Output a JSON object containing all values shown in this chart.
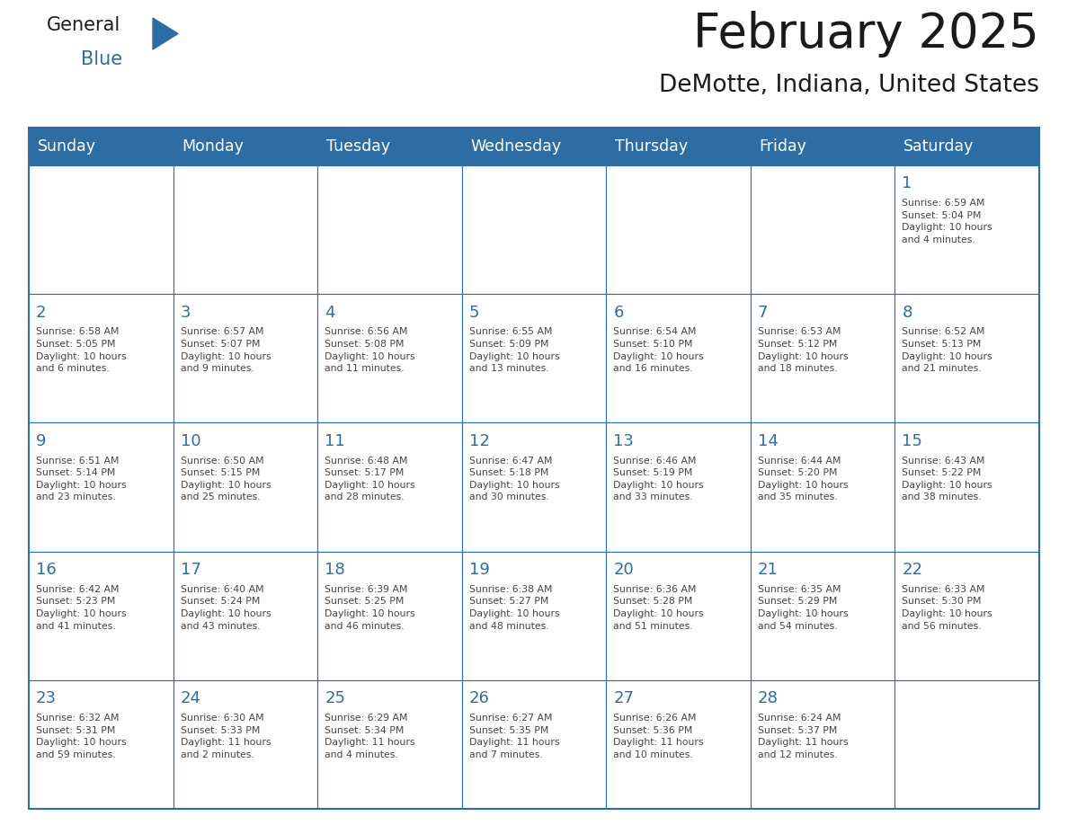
{
  "title": "February 2025",
  "subtitle": "DeMotte, Indiana, United States",
  "header_bg_color": "#2E6DA4",
  "header_text_color": "#FFFFFF",
  "day_names": [
    "Sunday",
    "Monday",
    "Tuesday",
    "Wednesday",
    "Thursday",
    "Friday",
    "Saturday"
  ],
  "cell_bg_color": "#FFFFFF",
  "grid_line_color": "#2E6DA4",
  "date_text_color": "#2E6DA4",
  "info_text_color": "#444444",
  "background_color": "#FFFFFF",
  "logo_general_color": "#1a1a1a",
  "logo_blue_color": "#2E6DA4",
  "calendar": [
    [
      null,
      null,
      null,
      null,
      null,
      null,
      1
    ],
    [
      2,
      3,
      4,
      5,
      6,
      7,
      8
    ],
    [
      9,
      10,
      11,
      12,
      13,
      14,
      15
    ],
    [
      16,
      17,
      18,
      19,
      20,
      21,
      22
    ],
    [
      23,
      24,
      25,
      26,
      27,
      28,
      null
    ]
  ],
  "sunrise_data": {
    "1": "Sunrise: 6:59 AM\nSunset: 5:04 PM\nDaylight: 10 hours\nand 4 minutes.",
    "2": "Sunrise: 6:58 AM\nSunset: 5:05 PM\nDaylight: 10 hours\nand 6 minutes.",
    "3": "Sunrise: 6:57 AM\nSunset: 5:07 PM\nDaylight: 10 hours\nand 9 minutes.",
    "4": "Sunrise: 6:56 AM\nSunset: 5:08 PM\nDaylight: 10 hours\nand 11 minutes.",
    "5": "Sunrise: 6:55 AM\nSunset: 5:09 PM\nDaylight: 10 hours\nand 13 minutes.",
    "6": "Sunrise: 6:54 AM\nSunset: 5:10 PM\nDaylight: 10 hours\nand 16 minutes.",
    "7": "Sunrise: 6:53 AM\nSunset: 5:12 PM\nDaylight: 10 hours\nand 18 minutes.",
    "8": "Sunrise: 6:52 AM\nSunset: 5:13 PM\nDaylight: 10 hours\nand 21 minutes.",
    "9": "Sunrise: 6:51 AM\nSunset: 5:14 PM\nDaylight: 10 hours\nand 23 minutes.",
    "10": "Sunrise: 6:50 AM\nSunset: 5:15 PM\nDaylight: 10 hours\nand 25 minutes.",
    "11": "Sunrise: 6:48 AM\nSunset: 5:17 PM\nDaylight: 10 hours\nand 28 minutes.",
    "12": "Sunrise: 6:47 AM\nSunset: 5:18 PM\nDaylight: 10 hours\nand 30 minutes.",
    "13": "Sunrise: 6:46 AM\nSunset: 5:19 PM\nDaylight: 10 hours\nand 33 minutes.",
    "14": "Sunrise: 6:44 AM\nSunset: 5:20 PM\nDaylight: 10 hours\nand 35 minutes.",
    "15": "Sunrise: 6:43 AM\nSunset: 5:22 PM\nDaylight: 10 hours\nand 38 minutes.",
    "16": "Sunrise: 6:42 AM\nSunset: 5:23 PM\nDaylight: 10 hours\nand 41 minutes.",
    "17": "Sunrise: 6:40 AM\nSunset: 5:24 PM\nDaylight: 10 hours\nand 43 minutes.",
    "18": "Sunrise: 6:39 AM\nSunset: 5:25 PM\nDaylight: 10 hours\nand 46 minutes.",
    "19": "Sunrise: 6:38 AM\nSunset: 5:27 PM\nDaylight: 10 hours\nand 48 minutes.",
    "20": "Sunrise: 6:36 AM\nSunset: 5:28 PM\nDaylight: 10 hours\nand 51 minutes.",
    "21": "Sunrise: 6:35 AM\nSunset: 5:29 PM\nDaylight: 10 hours\nand 54 minutes.",
    "22": "Sunrise: 6:33 AM\nSunset: 5:30 PM\nDaylight: 10 hours\nand 56 minutes.",
    "23": "Sunrise: 6:32 AM\nSunset: 5:31 PM\nDaylight: 10 hours\nand 59 minutes.",
    "24": "Sunrise: 6:30 AM\nSunset: 5:33 PM\nDaylight: 11 hours\nand 2 minutes.",
    "25": "Sunrise: 6:29 AM\nSunset: 5:34 PM\nDaylight: 11 hours\nand 4 minutes.",
    "26": "Sunrise: 6:27 AM\nSunset: 5:35 PM\nDaylight: 11 hours\nand 7 minutes.",
    "27": "Sunrise: 6:26 AM\nSunset: 5:36 PM\nDaylight: 11 hours\nand 10 minutes.",
    "28": "Sunrise: 6:24 AM\nSunset: 5:37 PM\nDaylight: 11 hours\nand 12 minutes."
  }
}
